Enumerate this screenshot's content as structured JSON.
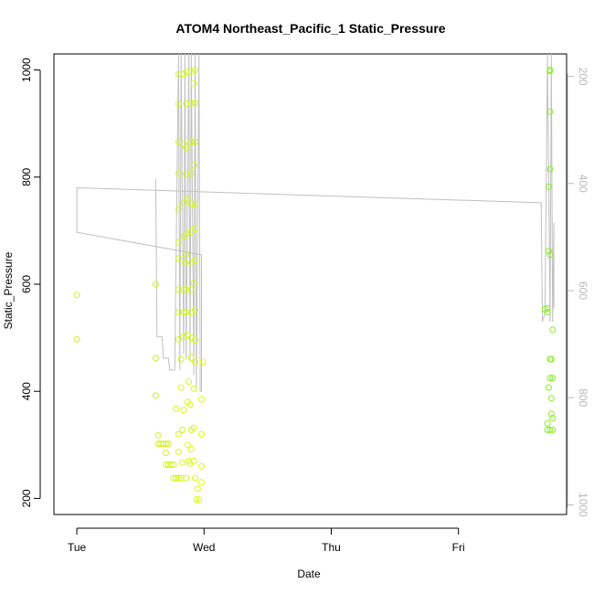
{
  "chart_data": {
    "type": "scatter",
    "title": "ATOM4 Northeast_Pacific_1 Static_Pressure",
    "xlabel": "Date",
    "ylabel": "Static_Pressure",
    "x_ticks": [
      "Tue",
      "Wed",
      "Thu",
      "Fri"
    ],
    "y_ticks": [
      200,
      400,
      600,
      800,
      1000
    ],
    "y_range": [
      170,
      1030
    ],
    "x_range_days": [
      -0.18,
      3.85
    ],
    "right_axis": {
      "ticks": [
        200,
        400,
        600,
        800,
        1000
      ],
      "reversed": true,
      "color": "#b8b8b8"
    },
    "grid": false,
    "legend": "none",
    "colors": {
      "points_start": "#ccee33",
      "points_mid": "#ddff00",
      "points_end": "#88ee22",
      "trace_line": "#c0c0c0",
      "axis": "#000000"
    },
    "series": [
      {
        "values": [
          [
            0.0,
            580
          ],
          [
            0.0,
            497
          ],
          [
            0.62,
            600
          ],
          [
            0.62,
            462
          ],
          [
            0.62,
            392
          ],
          [
            0.64,
            318
          ],
          [
            0.64,
            302
          ],
          [
            0.66,
            302
          ],
          [
            0.68,
            302
          ],
          [
            0.7,
            302
          ],
          [
            0.72,
            302
          ],
          [
            0.7,
            285
          ],
          [
            0.7,
            263
          ],
          [
            0.72,
            263
          ],
          [
            0.74,
            263
          ],
          [
            0.76,
            263
          ],
          [
            0.76,
            238
          ],
          [
            0.78,
            238
          ],
          [
            0.8,
            238
          ],
          [
            0.82,
            238
          ],
          [
            0.86,
            238
          ],
          [
            0.8,
            320
          ],
          [
            0.8,
            287
          ],
          [
            0.78,
            367
          ],
          [
            0.8,
            497
          ],
          [
            0.8,
            992
          ],
          [
            0.8,
            937
          ],
          [
            0.8,
            866
          ],
          [
            0.8,
            807
          ],
          [
            0.8,
            740
          ],
          [
            0.8,
            678
          ],
          [
            0.8,
            648
          ],
          [
            0.8,
            590
          ],
          [
            0.8,
            548
          ],
          [
            0.82,
            460
          ],
          [
            0.82,
            407
          ],
          [
            0.83,
            328
          ],
          [
            0.83,
            267
          ],
          [
            0.84,
            993
          ],
          [
            0.84,
            862
          ],
          [
            0.84,
            752
          ],
          [
            0.84,
            690
          ],
          [
            0.85,
            640
          ],
          [
            0.84,
            590
          ],
          [
            0.84,
            548
          ],
          [
            0.84,
            502
          ],
          [
            0.84,
            365
          ],
          [
            0.86,
            996
          ],
          [
            0.86,
            937
          ],
          [
            0.86,
            855
          ],
          [
            0.86,
            806
          ],
          [
            0.87,
            760
          ],
          [
            0.86,
            694
          ],
          [
            0.86,
            655
          ],
          [
            0.86,
            590
          ],
          [
            0.86,
            548
          ],
          [
            0.87,
            505
          ],
          [
            0.87,
            380
          ],
          [
            0.87,
            300
          ],
          [
            0.88,
            270
          ],
          [
            0.9,
            997
          ],
          [
            0.9,
            938
          ],
          [
            0.9,
            866
          ],
          [
            0.9,
            807
          ],
          [
            0.9,
            750
          ],
          [
            0.9,
            698
          ],
          [
            0.9,
            640
          ],
          [
            0.9,
            590
          ],
          [
            0.9,
            548
          ],
          [
            0.9,
            500
          ],
          [
            0.9,
            463
          ],
          [
            0.88,
            418
          ],
          [
            0.89,
            375
          ],
          [
            0.9,
            328
          ],
          [
            0.9,
            292
          ],
          [
            0.89,
            265
          ],
          [
            0.93,
            1000
          ],
          [
            0.92,
            975
          ],
          [
            0.93,
            938
          ],
          [
            0.93,
            866
          ],
          [
            0.92,
            822
          ],
          [
            0.93,
            750
          ],
          [
            0.93,
            705
          ],
          [
            0.93,
            645
          ],
          [
            0.92,
            602
          ],
          [
            0.93,
            552
          ],
          [
            0.93,
            496
          ],
          [
            0.93,
            455
          ],
          [
            0.92,
            405
          ],
          [
            0.92,
            332
          ],
          [
            0.92,
            270
          ],
          [
            0.93,
            238
          ],
          [
            0.95,
            218
          ],
          [
            0.96,
            198
          ],
          [
            0.94,
            198
          ],
          [
            0.98,
            385
          ],
          [
            0.98,
            320
          ],
          [
            0.98,
            260
          ],
          [
            0.98,
            230
          ],
          [
            0.99,
            455
          ]
        ]
      },
      {
        "values": [
          [
            3.68,
            553
          ],
          [
            3.7,
            555
          ],
          [
            3.7,
            548
          ],
          [
            3.72,
            1000
          ],
          [
            3.72,
            998
          ],
          [
            3.72,
            922
          ],
          [
            3.72,
            815
          ],
          [
            3.71,
            782
          ],
          [
            3.71,
            662
          ],
          [
            3.72,
            655
          ],
          [
            3.72,
            460
          ],
          [
            3.73,
            460
          ],
          [
            3.72,
            425
          ],
          [
            3.74,
            425
          ],
          [
            3.71,
            407
          ],
          [
            3.73,
            387
          ],
          [
            3.74,
            515
          ],
          [
            3.73,
            358
          ],
          [
            3.74,
            350
          ],
          [
            3.7,
            340
          ],
          [
            3.7,
            328
          ],
          [
            3.72,
            328
          ],
          [
            3.74,
            328
          ]
        ]
      }
    ],
    "trace_line": [
      [
        0.62,
        797
      ],
      [
        0.63,
        502
      ],
      [
        0.67,
        502
      ],
      [
        0.68,
        462
      ],
      [
        0.72,
        462
      ],
      [
        0.73,
        440
      ],
      [
        0.77,
        440
      ],
      [
        0.8,
        1030
      ],
      [
        0.81,
        440
      ],
      [
        0.82,
        1030
      ],
      [
        0.84,
        470
      ],
      [
        0.85,
        1030
      ],
      [
        0.86,
        460
      ],
      [
        0.88,
        1030
      ],
      [
        0.89,
        455
      ],
      [
        0.9,
        1030
      ],
      [
        0.92,
        430
      ],
      [
        0.93,
        1030
      ],
      [
        0.94,
        400
      ],
      [
        0.96,
        1030
      ],
      [
        0.97,
        400
      ],
      [
        0.98,
        400
      ],
      [
        0.98,
        655
      ],
      [
        0.0,
        697
      ],
      [
        0.0,
        780
      ],
      [
        3.65,
        752
      ],
      [
        3.66,
        530
      ],
      [
        3.68,
        545
      ],
      [
        3.7,
        1030
      ],
      [
        3.72,
        530
      ],
      [
        3.73,
        1030
      ],
      [
        3.74,
        530
      ],
      [
        3.75,
        715
      ],
      [
        3.75,
        555
      ]
    ]
  }
}
